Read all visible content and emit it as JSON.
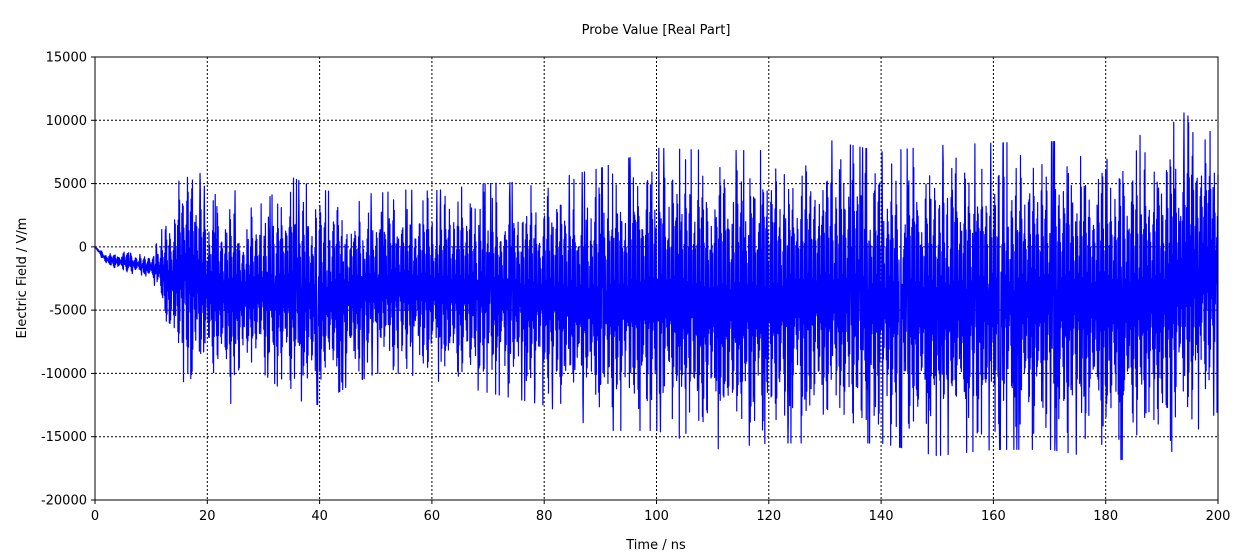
{
  "chart_data": {
    "type": "line",
    "title": "Probe Value [Real Part]",
    "xlabel": "Time / ns",
    "ylabel": "Electric Field / V/m",
    "xlim": [
      0,
      200
    ],
    "ylim": [
      -20000,
      15000
    ],
    "xticks": [
      "0",
      "20",
      "40",
      "60",
      "80",
      "100",
      "120",
      "140",
      "160",
      "180",
      "200"
    ],
    "yticks": [
      "15000",
      "10000",
      "5000",
      "0",
      "-5000",
      "-10000",
      "-15000",
      "-20000"
    ],
    "grid": true,
    "series": [
      {
        "color": "#0000ff",
        "envelope": {
          "x": [
            0,
            2,
            5,
            8,
            10,
            11,
            12,
            13,
            14,
            15,
            16,
            17,
            18,
            19,
            20,
            22,
            24,
            26,
            28,
            30,
            35,
            40,
            45,
            50,
            55,
            60,
            70,
            80,
            90,
            100,
            110,
            120,
            130,
            140,
            150,
            160,
            170,
            180,
            190,
            195,
            200
          ],
          "max": [
            0,
            -500,
            -400,
            -600,
            -800,
            300,
            1500,
            2500,
            3500,
            5500,
            7500,
            8000,
            6500,
            5500,
            4000,
            4200,
            5000,
            3800,
            3000,
            3500,
            5500,
            4500,
            4200,
            4200,
            4500,
            4400,
            5000,
            5200,
            6200,
            7800,
            7600,
            7600,
            8500,
            7500,
            8000,
            8200,
            8300,
            8500,
            9000,
            11000,
            10000
          ],
          "min": [
            0,
            -1500,
            -2000,
            -2200,
            -2400,
            -3500,
            -5500,
            -7500,
            -8500,
            -9500,
            -11000,
            -12500,
            -11000,
            -10500,
            -10000,
            -11000,
            -12500,
            -11000,
            -9500,
            -10000,
            -12000,
            -12500,
            -11000,
            -10000,
            -10000,
            -10500,
            -11500,
            -12500,
            -14500,
            -14500,
            -16000,
            -15500,
            -15500,
            -15500,
            -16500,
            -16000,
            -16000,
            -16800,
            -16800,
            -15000,
            -13000
          ]
        }
      }
    ]
  }
}
